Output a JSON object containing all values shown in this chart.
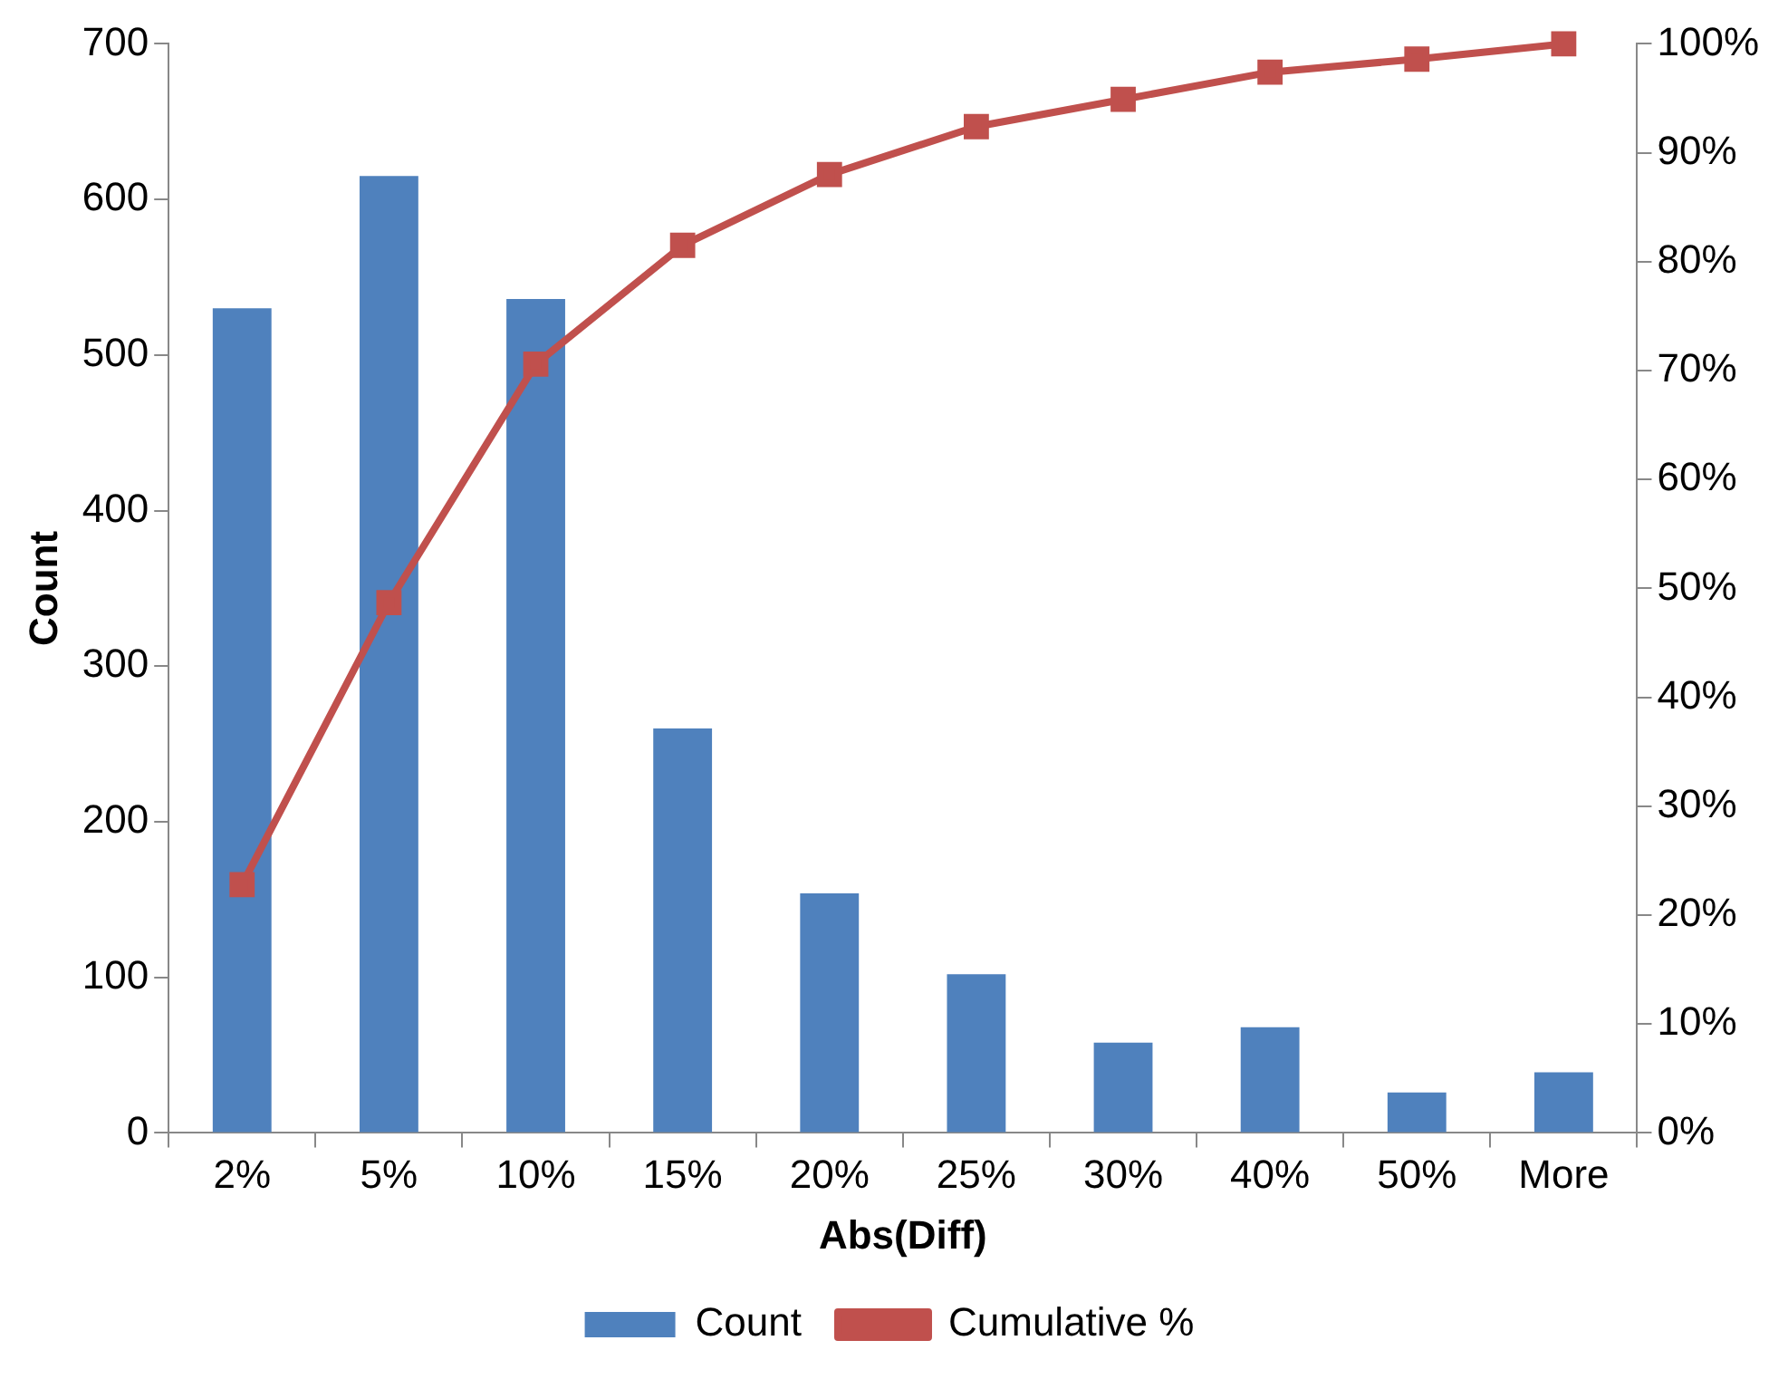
{
  "chart_data": {
    "type": "bar",
    "xlabel": "Abs(Diff)",
    "ylabel": "Count",
    "categories": [
      "2%",
      "5%",
      "10%",
      "15%",
      "20%",
      "25%",
      "30%",
      "40%",
      "50%",
      "More"
    ],
    "series": [
      {
        "name": "Count",
        "color": "#4f81bd",
        "values": [
          530,
          615,
          536,
          260,
          154,
          102,
          58,
          68,
          26,
          39
        ]
      },
      {
        "name": "Cumulative %",
        "type": "line",
        "axis": "y2",
        "color": "#c0504d",
        "marker": "square",
        "values": [
          22.8,
          48.7,
          70.6,
          81.5,
          88,
          92.4,
          94.9,
          97.4,
          98.6,
          100
        ]
      }
    ],
    "ylim": [
      0,
      700
    ],
    "yticks": [
      0,
      100,
      200,
      300,
      400,
      500,
      600,
      700
    ],
    "y2lim": [
      0,
      100
    ],
    "y2ticks": [
      {
        "value": 0,
        "label": "0%"
      },
      {
        "value": 10,
        "label": "10%"
      },
      {
        "value": 20,
        "label": "20%"
      },
      {
        "value": 30,
        "label": "30%"
      },
      {
        "value": 40,
        "label": "40%"
      },
      {
        "value": 50,
        "label": "50%"
      },
      {
        "value": 60,
        "label": "60%"
      },
      {
        "value": 70,
        "label": "70%"
      },
      {
        "value": 80,
        "label": "80%"
      },
      {
        "value": 90,
        "label": "90%"
      },
      {
        "value": 100,
        "label": "100%"
      }
    ],
    "grid": false,
    "legend": "bottom"
  }
}
